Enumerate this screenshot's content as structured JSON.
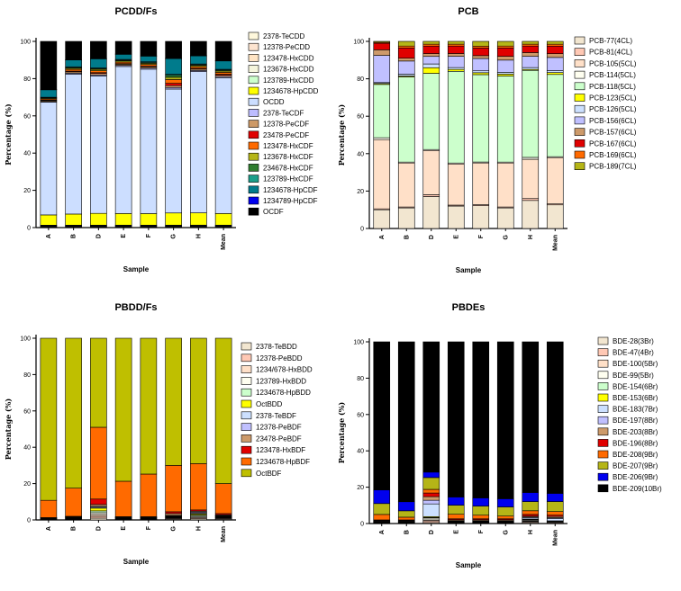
{
  "chart_data": [
    {
      "type": "bar",
      "stacked": true,
      "title": "PCDD/Fs",
      "xlabel": "Sample",
      "ylabel": "Percentage (%)",
      "ylim": [
        0,
        100
      ],
      "yticks": [
        0,
        20,
        40,
        60,
        80,
        100
      ],
      "categories": [
        "A",
        "B",
        "D",
        "E",
        "F",
        "G",
        "H",
        "Mean"
      ],
      "series": [
        {
          "name": "2378-TeCDD",
          "color": "#fff8dc",
          "values": [
            0.2,
            0.2,
            0.2,
            0.2,
            0.2,
            0.2,
            0.2,
            0.2
          ]
        },
        {
          "name": "12378-PeCDD",
          "color": "#fde4d0",
          "values": [
            0.3,
            0.3,
            0.3,
            0.3,
            0.3,
            0.3,
            0.3,
            0.3
          ]
        },
        {
          "name": "123478-HxCDD",
          "color": "#ffe4c4",
          "values": [
            0.2,
            0.2,
            0.2,
            0.2,
            0.2,
            0.2,
            0.2,
            0.2
          ]
        },
        {
          "name": "123678-HxCDD",
          "color": "#f5f5dc",
          "values": [
            0.3,
            0.3,
            0.3,
            0.3,
            0.3,
            0.3,
            0.3,
            0.3
          ]
        },
        {
          "name": "123789-HxCDD",
          "color": "#ccffcc",
          "values": [
            0.3,
            0.3,
            0.3,
            0.3,
            0.3,
            0.3,
            0.3,
            0.3
          ]
        },
        {
          "name": "1234678-HpCDD",
          "color": "#ffff00",
          "values": [
            5.5,
            5.9,
            6.2,
            6.1,
            6.1,
            6.4,
            6.4,
            6.1
          ]
        },
        {
          "name": "OCDD",
          "color": "#ccdeff",
          "values": [
            60.5,
            74.3,
            72.5,
            77.4,
            76.4,
            65.3,
            73.8,
            71.5
          ]
        },
        {
          "name": "2378-TeCDF",
          "color": "#bdbdff",
          "values": [
            0.4,
            0.6,
            0.6,
            0.6,
            0.6,
            0.8,
            0.6,
            0.6
          ]
        },
        {
          "name": "12378-PeCDF",
          "color": "#cd9966",
          "values": [
            0.5,
            0.7,
            0.8,
            0.6,
            0.7,
            1.0,
            0.7,
            0.7
          ]
        },
        {
          "name": "23478-PeCDF",
          "color": "#e00000",
          "values": [
            0.3,
            0.4,
            0.4,
            0.3,
            0.4,
            1.2,
            0.4,
            0.5
          ]
        },
        {
          "name": "123478-HxCDF",
          "color": "#ff6a00",
          "values": [
            0.6,
            0.9,
            1.0,
            0.8,
            0.8,
            2.0,
            0.9,
            1.0
          ]
        },
        {
          "name": "123678-HxCDF",
          "color": "#b5b517",
          "values": [
            0.4,
            0.6,
            0.7,
            0.6,
            0.6,
            1.2,
            0.6,
            0.7
          ]
        },
        {
          "name": "234678-HxCDF",
          "color": "#2f7d2f",
          "values": [
            0.2,
            0.4,
            0.4,
            0.4,
            0.4,
            1.0,
            0.4,
            0.5
          ]
        },
        {
          "name": "123789-HxCDF",
          "color": "#1a9e8a",
          "values": [
            0.3,
            0.4,
            0.4,
            0.4,
            0.4,
            0.6,
            0.4,
            0.4
          ]
        },
        {
          "name": "1234678-HpCDF",
          "color": "#007b8c",
          "values": [
            4.0,
            3.6,
            4.8,
            2.7,
            3.0,
            8.2,
            4.2,
            4.4
          ]
        },
        {
          "name": "1234789-HpCDF",
          "color": "#0000ee",
          "values": [
            0.2,
            0.2,
            0.2,
            0.2,
            0.2,
            0.3,
            0.2,
            0.2
          ]
        },
        {
          "name": "OCDF",
          "color": "#000000",
          "values": [
            25.8,
            9.7,
            9.0,
            6.6,
            7.6,
            8.8,
            7.4,
            10.1
          ]
        }
      ]
    },
    {
      "type": "bar",
      "stacked": true,
      "title": "PCB",
      "xlabel": "Sample",
      "ylabel": "Percentage (%)",
      "ylim": [
        0,
        100
      ],
      "yticks": [
        0,
        20,
        40,
        60,
        80,
        100
      ],
      "categories": [
        "A",
        "B",
        "D",
        "E",
        "F",
        "G",
        "H",
        "Mean"
      ],
      "series": [
        {
          "name": "PCB-77(4CL)",
          "color": "#f2e6d0",
          "values": [
            10,
            11,
            17,
            12,
            12,
            11,
            15,
            12.5
          ]
        },
        {
          "name": "PCB-81(4CL)",
          "color": "#ffc8b4",
          "values": [
            0.5,
            0.5,
            1.0,
            0.5,
            0.5,
            0.5,
            1.0,
            0.5
          ]
        },
        {
          "name": "PCB-105(5CL)",
          "color": "#ffe0c8",
          "values": [
            37,
            23.5,
            23.5,
            22,
            22,
            23.5,
            21,
            24.5
          ]
        },
        {
          "name": "PCB-114(5CL)",
          "color": "#fffff0",
          "values": [
            1.0,
            0.5,
            0.5,
            0.5,
            0.5,
            0.5,
            1.0,
            0.5
          ]
        },
        {
          "name": "PCB-118(5CL)",
          "color": "#ccffcc",
          "values": [
            28.5,
            45.5,
            40.5,
            49,
            46,
            46,
            46.5,
            43.5
          ]
        },
        {
          "name": "PCB-123(5CL)",
          "color": "#ffff00",
          "values": [
            0.5,
            0.5,
            3.0,
            1.0,
            1.0,
            1.0,
            0.5,
            1.0
          ]
        },
        {
          "name": "PCB-126(5CL)",
          "color": "#cce0ff",
          "values": [
            0.5,
            1.0,
            2.0,
            1.0,
            1.0,
            1.0,
            1.0,
            1.0
          ]
        },
        {
          "name": "PCB-156(6CL)",
          "color": "#c0c0ff",
          "values": [
            14.5,
            7.0,
            4.0,
            6.0,
            6.5,
            6.5,
            6.0,
            7.0
          ]
        },
        {
          "name": "PCB-157(6CL)",
          "color": "#cd9a6a",
          "values": [
            3.0,
            1.5,
            1.5,
            1.5,
            1.5,
            2.0,
            2.0,
            2.0
          ]
        },
        {
          "name": "PCB-167(6CL)",
          "color": "#e00000",
          "values": [
            3.5,
            5.5,
            4.0,
            4.0,
            4.0,
            4.5,
            3.5,
            4.0
          ]
        },
        {
          "name": "PCB-169(6CL)",
          "color": "#ff6a00",
          "values": [
            0.5,
            1.0,
            1.0,
            1.0,
            1.0,
            1.0,
            1.0,
            1.0
          ]
        },
        {
          "name": "PCB-189(7CL)",
          "color": "#b5b517",
          "values": [
            0.5,
            2.5,
            1.5,
            1.5,
            2.5,
            2.5,
            1.5,
            1.5
          ]
        }
      ]
    },
    {
      "type": "bar",
      "stacked": true,
      "title": "PBDD/Fs",
      "xlabel": "Sample",
      "ylabel": "Percentage (%)",
      "ylim": [
        0,
        100
      ],
      "yticks": [
        0,
        20,
        40,
        60,
        80,
        100
      ],
      "categories": [
        "A",
        "B",
        "D",
        "E",
        "F",
        "G",
        "H",
        "Mean"
      ],
      "series": [
        {
          "name": "2378-TeBDD",
          "color": "#f2e6d0",
          "values": [
            0.2,
            0.3,
            1.0,
            0.2,
            0.2,
            0.4,
            0.6,
            0.4
          ]
        },
        {
          "name": "12378-PeBDD",
          "color": "#ffc8b4",
          "values": [
            0.2,
            0.3,
            1.0,
            0.2,
            0.2,
            0.4,
            0.5,
            0.4
          ]
        },
        {
          "name": "1234/678-HxBDD",
          "color": "#ffe0c8",
          "values": [
            0.2,
            0.2,
            1.0,
            0.2,
            0.2,
            0.3,
            0.5,
            0.3
          ]
        },
        {
          "name": "123789-HxBDD",
          "color": "#fffff0",
          "values": [
            0.1,
            0.2,
            1.0,
            0.2,
            0.2,
            0.3,
            0.5,
            0.3
          ]
        },
        {
          "name": "1234678-HpBDD",
          "color": "#ccffcc",
          "values": [
            0.1,
            0.2,
            1.0,
            0.2,
            0.2,
            0.3,
            0.6,
            0.3
          ]
        },
        {
          "name": "OctBDD",
          "color": "#ffff00",
          "values": [
            0.1,
            0.2,
            1.5,
            0.2,
            0.2,
            0.3,
            0.6,
            0.3
          ]
        },
        {
          "name": "2378-TeBDF",
          "color": "#cce0ff",
          "values": [
            0.1,
            0.1,
            0.5,
            0.1,
            0.1,
            0.2,
            0.5,
            0.2
          ]
        },
        {
          "name": "12378-PeBDF",
          "color": "#c0c0ff",
          "values": [
            0.1,
            0.1,
            0.5,
            0.1,
            0.1,
            0.3,
            0.5,
            0.2
          ]
        },
        {
          "name": "23478-PeBDF",
          "color": "#cd9a6a",
          "values": [
            0.1,
            0.2,
            1.0,
            0.2,
            0.2,
            1.0,
            0.5,
            0.4
          ]
        },
        {
          "name": "123478-HxBDF",
          "color": "#e00000",
          "values": [
            0.1,
            0.2,
            3.0,
            0.2,
            0.2,
            1.0,
            0.7,
            0.7
          ]
        },
        {
          "name": "1234678-HpBDF",
          "color": "#ff6a00",
          "values": [
            9.5,
            15.5,
            39.5,
            19.5,
            23.5,
            25.5,
            25.5,
            16.5
          ]
        },
        {
          "name": "OctBDF",
          "color": "#bfbf00",
          "values": [
            89.2,
            82.5,
            49.0,
            78.7,
            74.9,
            70.0,
            69.0,
            80.0
          ]
        }
      ]
    },
    {
      "type": "bar",
      "stacked": true,
      "title": "PBDEs",
      "xlabel": "Sample",
      "ylabel": "Percentage (%)",
      "ylim": [
        0,
        100
      ],
      "yticks": [
        0,
        20,
        40,
        60,
        80,
        100
      ],
      "categories": [
        "A",
        "B",
        "D",
        "E",
        "F",
        "G",
        "H",
        "Mean"
      ],
      "series": [
        {
          "name": "BDE-28(3Br)",
          "color": "#f2e6d0",
          "values": [
            0.1,
            0.1,
            0.5,
            0.1,
            0.1,
            0.1,
            0.5,
            0.2
          ]
        },
        {
          "name": "BDE-47(4Br)",
          "color": "#ffc8b4",
          "values": [
            0.3,
            0.3,
            1.0,
            0.3,
            0.3,
            0.3,
            0.5,
            0.4
          ]
        },
        {
          "name": "BDE-100(5Br)",
          "color": "#ffe0c8",
          "values": [
            0.1,
            0.1,
            0.5,
            0.1,
            0.1,
            0.1,
            0.3,
            0.2
          ]
        },
        {
          "name": "BDE-99(5Br)",
          "color": "#fffff0",
          "values": [
            0.3,
            0.3,
            1.0,
            0.3,
            0.3,
            0.3,
            0.5,
            0.4
          ]
        },
        {
          "name": "BDE-154(6Br)",
          "color": "#ccffcc",
          "values": [
            0.1,
            0.1,
            0.3,
            0.1,
            0.1,
            0.1,
            0.2,
            0.1
          ]
        },
        {
          "name": "BDE-153(6Br)",
          "color": "#ffff00",
          "values": [
            0.1,
            0.1,
            0.5,
            0.1,
            0.1,
            0.1,
            0.3,
            0.2
          ]
        },
        {
          "name": "BDE-183(7Br)",
          "color": "#cce0ff",
          "values": [
            0.2,
            0.2,
            7.0,
            0.3,
            0.3,
            0.3,
            0.7,
            1.2
          ]
        },
        {
          "name": "BDE-197(8Br)",
          "color": "#c0c0ff",
          "values": [
            0.2,
            0.2,
            2.0,
            0.3,
            0.3,
            0.3,
            0.5,
            0.5
          ]
        },
        {
          "name": "BDE-203(8Br)",
          "color": "#cd9a6a",
          "values": [
            0.3,
            0.3,
            2.0,
            0.5,
            0.5,
            0.5,
            0.5,
            0.7
          ]
        },
        {
          "name": "BDE-196(8Br)",
          "color": "#e00000",
          "values": [
            0.3,
            0.3,
            2.0,
            0.5,
            0.5,
            0.5,
            1.0,
            0.7
          ]
        },
        {
          "name": "BDE-208(9Br)",
          "color": "#ff6a00",
          "values": [
            3.0,
            1.5,
            2.0,
            2.5,
            2.0,
            1.5,
            2.0,
            2.0
          ]
        },
        {
          "name": "BDE-207(9Br)",
          "color": "#b5b517",
          "values": [
            6.0,
            3.5,
            6.5,
            5.0,
            5.0,
            5.0,
            5.0,
            5.5
          ]
        },
        {
          "name": "BDE-206(9Br)",
          "color": "#0000ee",
          "values": [
            7.5,
            5.0,
            3.0,
            4.5,
            4.5,
            4.5,
            5.0,
            4.5
          ]
        },
        {
          "name": "BDE-209(10Br)",
          "color": "#000000",
          "values": [
            81.5,
            88.0,
            71.7,
            85.4,
            85.9,
            86.1,
            82.5,
            83.4
          ]
        }
      ]
    }
  ]
}
